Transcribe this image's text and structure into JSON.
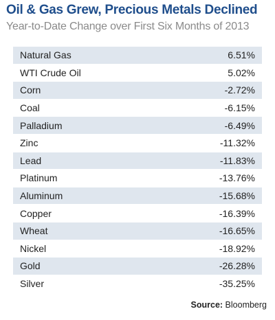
{
  "title": "Oil & Gas Grew, Precious Metals Declined",
  "subtitle": "Year-to-Date Change over First Six Months  of 2013",
  "source": {
    "label": "Source:",
    "value": "Bloomberg"
  },
  "colors": {
    "title": "#1f4e8c",
    "row_shade": "#dfe6ee",
    "subtitle": "#8a8a8a"
  },
  "chart_data": {
    "type": "table",
    "title": "Oil & Gas Grew, Precious Metals Declined",
    "subtitle": "Year-to-Date Change over First Six Months  of 2013",
    "rows": [
      {
        "name": "Natural Gas",
        "value": 6.51,
        "display": "6.51%"
      },
      {
        "name": "WTI Crude Oil",
        "value": 5.02,
        "display": "5.02%"
      },
      {
        "name": "Corn",
        "value": -2.72,
        "display": "-2.72%"
      },
      {
        "name": "Coal",
        "value": -6.15,
        "display": "-6.15%"
      },
      {
        "name": "Palladium",
        "value": -6.49,
        "display": "-6.49%"
      },
      {
        "name": "Zinc",
        "value": -11.32,
        "display": "-11.32%"
      },
      {
        "name": "Lead",
        "value": -11.83,
        "display": "-11.83%"
      },
      {
        "name": "Platinum",
        "value": -13.76,
        "display": "-13.76%"
      },
      {
        "name": "Aluminum",
        "value": -15.68,
        "display": "-15.68%"
      },
      {
        "name": "Copper",
        "value": -16.39,
        "display": "-16.39%"
      },
      {
        "name": "Wheat",
        "value": -16.65,
        "display": "-16.65%"
      },
      {
        "name": "Nickel",
        "value": -18.92,
        "display": "-18.92%"
      },
      {
        "name": "Gold",
        "value": -26.28,
        "display": "-26.28%"
      },
      {
        "name": "Silver",
        "value": -35.25,
        "display": "-35.25%"
      }
    ]
  }
}
